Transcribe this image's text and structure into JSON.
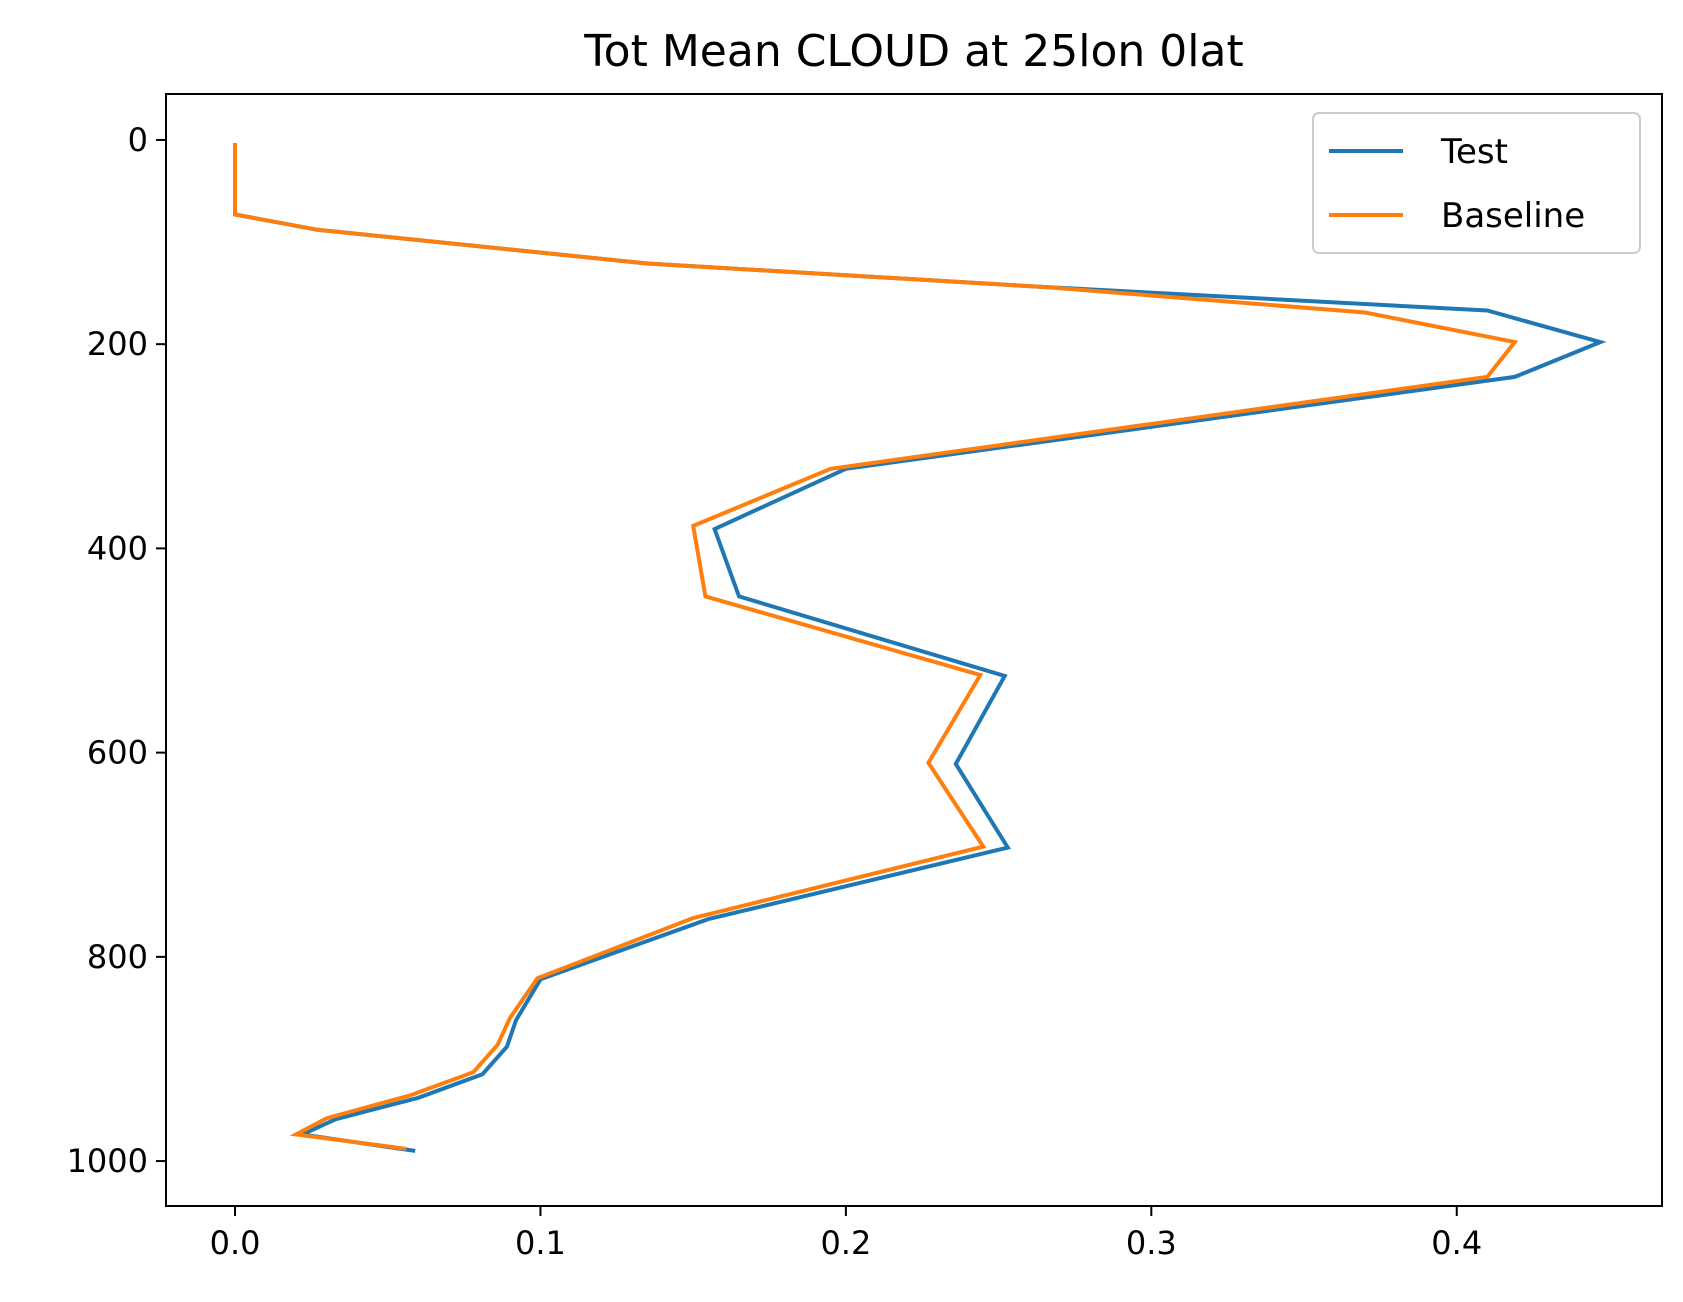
{
  "chart_data": {
    "type": "line",
    "title": "Tot Mean CLOUD at 25lon 0lat",
    "xlabel": "",
    "ylabel": "",
    "xlim": [
      -0.0226,
      0.4672
    ],
    "ylim": [
      1044,
      -45
    ],
    "y_inverted": true,
    "xticks": [
      0.0,
      0.1,
      0.2,
      0.3,
      0.4
    ],
    "xtick_labels": [
      "0.0",
      "0.1",
      "0.2",
      "0.3",
      "0.4"
    ],
    "yticks": [
      0,
      200,
      400,
      600,
      800,
      1000
    ],
    "ytick_labels": [
      "0",
      "200",
      "400",
      "600",
      "800",
      "1000"
    ],
    "grid": false,
    "legend_position": "upper right",
    "series": [
      {
        "name": "Test",
        "color": "#1f77b4",
        "x": [
          0.0,
          0.0,
          0.0,
          0.027,
          0.135,
          0.265,
          0.41,
          0.447,
          0.419,
          0.2,
          0.157,
          0.165,
          0.252,
          0.236,
          0.253,
          0.155,
          0.1,
          0.092,
          0.089,
          0.081,
          0.06,
          0.033,
          0.022,
          0.059
        ],
        "y": [
          3,
          50,
          73,
          88,
          121,
          144,
          167,
          198,
          232,
          322,
          381,
          447,
          525,
          611,
          693,
          763,
          822,
          862,
          888,
          915,
          938,
          959,
          974,
          990
        ]
      },
      {
        "name": "Baseline",
        "color": "#ff7f0e",
        "x": [
          0.0,
          0.0,
          0.0,
          0.027,
          0.135,
          0.265,
          0.37,
          0.419,
          0.41,
          0.195,
          0.15,
          0.154,
          0.244,
          0.227,
          0.245,
          0.15,
          0.099,
          0.09,
          0.086,
          0.078,
          0.057,
          0.03,
          0.02,
          0.056
        ],
        "y": [
          3,
          50,
          73,
          88,
          121,
          144,
          169,
          198,
          232,
          322,
          378,
          447,
          524,
          610,
          692,
          762,
          821,
          860,
          886,
          913,
          936,
          958,
          974,
          988
        ]
      }
    ]
  }
}
